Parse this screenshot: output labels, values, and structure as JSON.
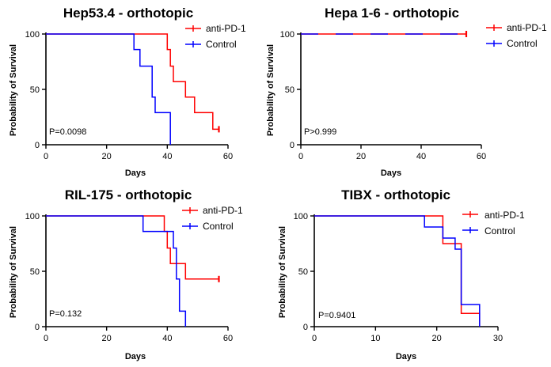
{
  "colors": {
    "anti_pd1": "#ff0000",
    "control": "#0000ff",
    "axis": "#000000"
  },
  "chart_data": [
    {
      "type": "line",
      "subtype": "kaplan-meier",
      "title": "Hep53.4 - orthotopic",
      "xlabel": "Days",
      "ylabel": "Probability of Survival",
      "xlim": [
        0,
        60
      ],
      "ylim": [
        0,
        100
      ],
      "xticks": [
        0,
        20,
        40,
        60
      ],
      "yticks": [
        0,
        50,
        100
      ],
      "pvalue": "P=0.0098",
      "series": [
        {
          "name": "anti-PD-1",
          "color": "#ff0000",
          "steps": [
            [
              0,
              100
            ],
            [
              40,
              100
            ],
            [
              40,
              86
            ],
            [
              41,
              86
            ],
            [
              41,
              71
            ],
            [
              42,
              71
            ],
            [
              42,
              57
            ],
            [
              46,
              57
            ],
            [
              46,
              43
            ],
            [
              49,
              43
            ],
            [
              49,
              29
            ],
            [
              55,
              29
            ],
            [
              55,
              14
            ],
            [
              57,
              14
            ]
          ],
          "censor": [
            [
              57,
              14
            ]
          ]
        },
        {
          "name": "Control",
          "color": "#0000ff",
          "steps": [
            [
              0,
              100
            ],
            [
              29,
              100
            ],
            [
              29,
              86
            ],
            [
              31,
              86
            ],
            [
              31,
              71
            ],
            [
              35,
              71
            ],
            [
              35,
              43
            ],
            [
              36,
              43
            ],
            [
              36,
              29
            ],
            [
              41,
              29
            ],
            [
              41,
              0
            ]
          ],
          "censor": []
        }
      ]
    },
    {
      "type": "line",
      "subtype": "kaplan-meier",
      "title": "Hepa 1-6 - orthotopic",
      "xlabel": "Days",
      "ylabel": "Probability of Survival",
      "xlim": [
        0,
        60
      ],
      "ylim": [
        0,
        100
      ],
      "xticks": [
        0,
        20,
        40,
        60
      ],
      "yticks": [
        0,
        50,
        100
      ],
      "pvalue": "P>0.999",
      "series": [
        {
          "name": "anti-PD-1",
          "color": "#ff0000",
          "steps": [
            [
              0,
              100
            ],
            [
              55,
              100
            ]
          ],
          "censor": [
            [
              55,
              100
            ]
          ]
        },
        {
          "name": "Control",
          "color": "#0000ff",
          "steps": [
            [
              0,
              100
            ],
            [
              55,
              100
            ]
          ],
          "censor": [],
          "dashed": true
        }
      ]
    },
    {
      "type": "line",
      "subtype": "kaplan-meier",
      "title": "RIL-175 - orthotopic",
      "xlabel": "Days",
      "ylabel": "Probability of Survival",
      "xlim": [
        0,
        60
      ],
      "ylim": [
        0,
        100
      ],
      "xticks": [
        0,
        20,
        40,
        60
      ],
      "yticks": [
        0,
        50,
        100
      ],
      "pvalue": "P=0.132",
      "series": [
        {
          "name": "anti-PD-1",
          "color": "#ff0000",
          "steps": [
            [
              0,
              100
            ],
            [
              39,
              100
            ],
            [
              39,
              86
            ],
            [
              40,
              86
            ],
            [
              40,
              71
            ],
            [
              41,
              71
            ],
            [
              41,
              57
            ],
            [
              46,
              57
            ],
            [
              46,
              43
            ],
            [
              57,
              43
            ]
          ],
          "censor": [
            [
              57,
              43
            ]
          ]
        },
        {
          "name": "Control",
          "color": "#0000ff",
          "steps": [
            [
              0,
              100
            ],
            [
              32,
              100
            ],
            [
              32,
              86
            ],
            [
              42,
              86
            ],
            [
              42,
              71
            ],
            [
              43,
              71
            ],
            [
              43,
              43
            ],
            [
              44,
              43
            ],
            [
              44,
              14
            ],
            [
              46,
              14
            ],
            [
              46,
              0
            ]
          ],
          "censor": []
        }
      ]
    },
    {
      "type": "line",
      "subtype": "kaplan-meier",
      "title": "TIBX - orthotopic",
      "xlabel": "Days",
      "ylabel": "Probability of Survival",
      "xlim": [
        0,
        30
      ],
      "ylim": [
        0,
        100
      ],
      "xticks": [
        0,
        10,
        20,
        30
      ],
      "yticks": [
        0,
        50,
        100
      ],
      "pvalue": "P=0.9401",
      "series": [
        {
          "name": "anti-PD-1",
          "color": "#ff0000",
          "steps": [
            [
              0,
              100
            ],
            [
              21,
              100
            ],
            [
              21,
              75
            ],
            [
              23,
              75
            ],
            [
              23,
              75
            ],
            [
              24,
              75
            ],
            [
              24,
              12
            ],
            [
              27,
              12
            ],
            [
              27,
              0
            ]
          ],
          "censor": []
        },
        {
          "name": "Control",
          "color": "#0000ff",
          "steps": [
            [
              0,
              100
            ],
            [
              18,
              100
            ],
            [
              18,
              90
            ],
            [
              21,
              90
            ],
            [
              21,
              80
            ],
            [
              23,
              80
            ],
            [
              23,
              70
            ],
            [
              24,
              70
            ],
            [
              24,
              20
            ],
            [
              27,
              20
            ],
            [
              27,
              0
            ]
          ],
          "censor": []
        }
      ]
    }
  ]
}
